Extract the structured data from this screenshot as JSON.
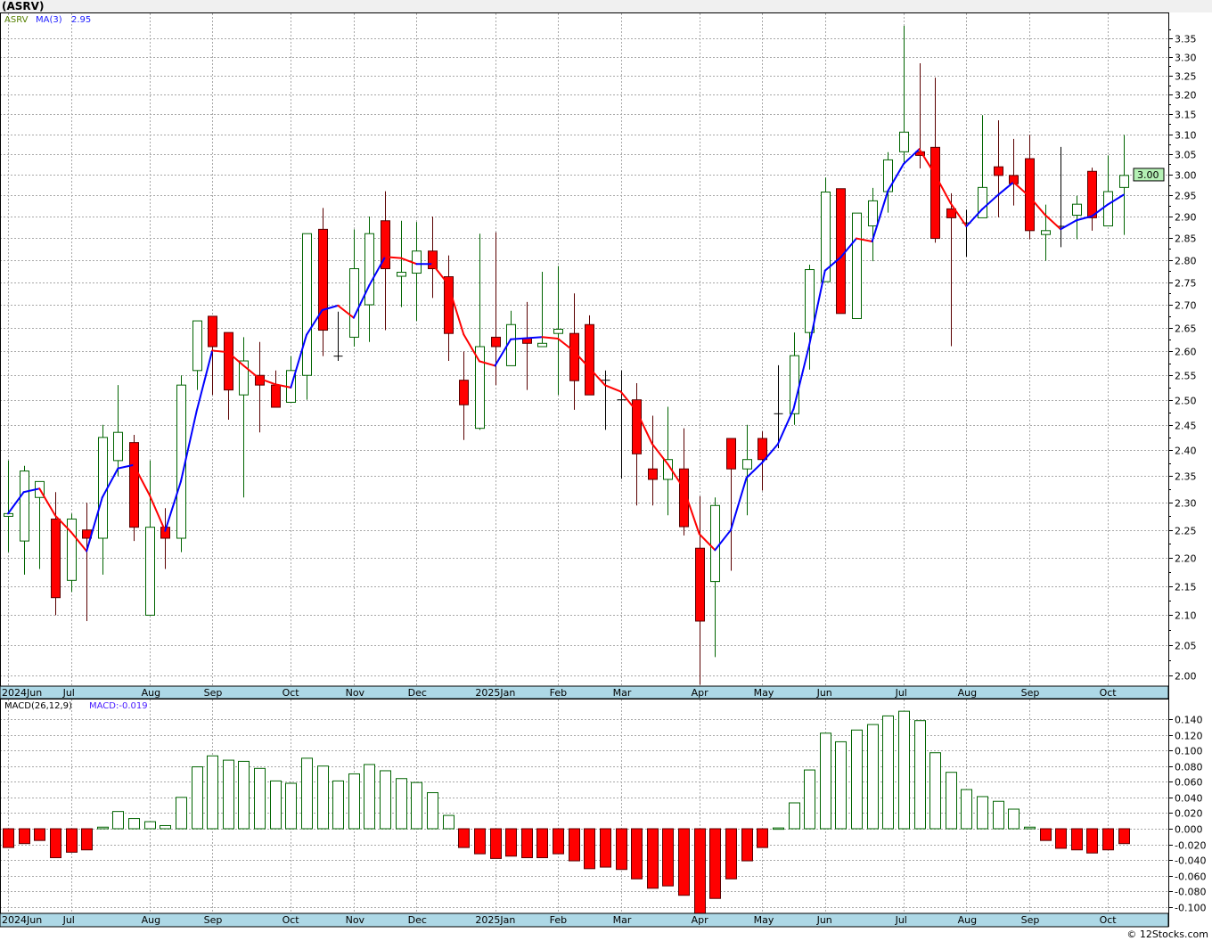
{
  "header": {
    "title": "(ASRV)",
    "footer": "© 12Stocks.com"
  },
  "colors": {
    "up": "#006400",
    "down": "#ff0000",
    "down_wick": "#5a0000",
    "ma_up": "#0000ff",
    "ma_down": "#ff0000",
    "date_strip": "#add8e6",
    "last_price_tag": "#b4f0b4"
  },
  "chart_data": [
    {
      "type": "candlestick",
      "title": "(ASRV)",
      "symbol": "ASRV",
      "scale": "log",
      "ylim": [
        2.0,
        3.35
      ],
      "yticks": [
        "2.00",
        "2.05",
        "2.10",
        "2.15",
        "2.20",
        "2.25",
        "2.30",
        "2.35",
        "2.40",
        "2.45",
        "2.50",
        "2.55",
        "2.60",
        "2.65",
        "2.70",
        "2.75",
        "2.80",
        "2.85",
        "2.90",
        "2.95",
        "3.00",
        "3.05",
        "3.10",
        "3.15",
        "3.20",
        "3.25",
        "3.30",
        "3.35"
      ],
      "grid": true,
      "legend": {
        "symbol_label": "ASRV",
        "ma_label": "MA(3)",
        "ma_value": "2.95"
      },
      "last_price": "3.00",
      "x_labels": [
        {
          "label": "2024Jun",
          "index": 0
        },
        {
          "label": "Jul",
          "index": 4
        },
        {
          "label": "Aug",
          "index": 9
        },
        {
          "label": "Sep",
          "index": 13
        },
        {
          "label": "Oct",
          "index": 18
        },
        {
          "label": "Nov",
          "index": 22
        },
        {
          "label": "Dec",
          "index": 26
        },
        {
          "label": "2025Jan",
          "index": 31
        },
        {
          "label": "Feb",
          "index": 35
        },
        {
          "label": "Mar",
          "index": 39
        },
        {
          "label": "Apr",
          "index": 44
        },
        {
          "label": "May",
          "index": 48
        },
        {
          "label": "Jun",
          "index": 52
        },
        {
          "label": "Jul",
          "index": 57
        },
        {
          "label": "Aug",
          "index": 61
        },
        {
          "label": "Sep",
          "index": 65
        },
        {
          "label": "Oct",
          "index": 70
        }
      ],
      "ohlc_fields": [
        "open",
        "high",
        "low",
        "close"
      ],
      "ohlc": [
        [
          2.275,
          2.38,
          2.21,
          2.28
        ],
        [
          2.23,
          2.37,
          2.17,
          2.36
        ],
        [
          2.31,
          2.34,
          2.18,
          2.34
        ],
        [
          2.27,
          2.32,
          2.1,
          2.13
        ],
        [
          2.16,
          2.28,
          2.14,
          2.27
        ],
        [
          2.25,
          2.3,
          2.09,
          2.235
        ],
        [
          2.235,
          2.45,
          2.17,
          2.425
        ],
        [
          2.38,
          2.53,
          2.35,
          2.435
        ],
        [
          2.415,
          2.43,
          2.23,
          2.255
        ],
        [
          2.1,
          2.38,
          2.1,
          2.255
        ],
        [
          2.255,
          2.29,
          2.18,
          2.235
        ],
        [
          2.235,
          2.55,
          2.21,
          2.53
        ],
        [
          2.56,
          2.665,
          2.52,
          2.665
        ],
        [
          2.675,
          2.675,
          2.51,
          2.61
        ],
        [
          2.64,
          2.64,
          2.46,
          2.52
        ],
        [
          2.51,
          2.63,
          2.31,
          2.58
        ],
        [
          2.55,
          2.62,
          2.435,
          2.53
        ],
        [
          2.53,
          2.56,
          2.485,
          2.485
        ],
        [
          2.495,
          2.59,
          2.495,
          2.56
        ],
        [
          2.55,
          2.86,
          2.5,
          2.86
        ],
        [
          2.87,
          2.92,
          2.59,
          2.645
        ],
        [
          2.59,
          2.685,
          2.58,
          2.59
        ],
        [
          2.63,
          2.87,
          2.61,
          2.78
        ],
        [
          2.7,
          2.9,
          2.62,
          2.86
        ],
        [
          2.89,
          2.96,
          2.645,
          2.78
        ],
        [
          2.763,
          2.89,
          2.695,
          2.772
        ],
        [
          2.77,
          2.887,
          2.665,
          2.82
        ],
        [
          2.82,
          2.9,
          2.715,
          2.78
        ],
        [
          2.762,
          2.81,
          2.58,
          2.638
        ],
        [
          2.54,
          2.6,
          2.42,
          2.49
        ],
        [
          2.443,
          2.86,
          2.44,
          2.61
        ],
        [
          2.63,
          2.863,
          2.53,
          2.61
        ],
        [
          2.57,
          2.687,
          2.57,
          2.657
        ],
        [
          2.628,
          2.706,
          2.52,
          2.617
        ],
        [
          2.61,
          2.773,
          2.61,
          2.617
        ],
        [
          2.638,
          2.786,
          2.51,
          2.647
        ],
        [
          2.638,
          2.725,
          2.48,
          2.539
        ],
        [
          2.657,
          2.677,
          2.51,
          2.51
        ],
        [
          2.54,
          2.56,
          2.44,
          2.54
        ],
        [
          2.5,
          2.56,
          2.345,
          2.5
        ],
        [
          2.5,
          2.534,
          2.295,
          2.393
        ],
        [
          2.364,
          2.468,
          2.295,
          2.344
        ],
        [
          2.344,
          2.486,
          2.277,
          2.382
        ],
        [
          2.364,
          2.443,
          2.24,
          2.256
        ],
        [
          2.217,
          2.312,
          1.985,
          2.09
        ],
        [
          2.158,
          2.31,
          2.03,
          2.295
        ],
        [
          2.423,
          2.423,
          2.177,
          2.364
        ],
        [
          2.364,
          2.45,
          2.277,
          2.382
        ],
        [
          2.423,
          2.437,
          2.323,
          2.382
        ],
        [
          2.472,
          2.571,
          2.404,
          2.472
        ],
        [
          2.472,
          2.64,
          2.45,
          2.591
        ],
        [
          2.64,
          2.789,
          2.562,
          2.778
        ],
        [
          2.751,
          2.993,
          2.751,
          2.958
        ],
        [
          2.966,
          2.966,
          2.681,
          2.681
        ],
        [
          2.67,
          2.908,
          2.67,
          2.908
        ],
        [
          2.878,
          2.968,
          2.797,
          2.937
        ],
        [
          2.959,
          3.055,
          2.909,
          3.036
        ],
        [
          3.056,
          3.384,
          3.028,
          3.105
        ],
        [
          3.056,
          3.283,
          3.015,
          3.047
        ],
        [
          3.067,
          3.245,
          2.839,
          2.849
        ],
        [
          2.918,
          2.955,
          2.611,
          2.897
        ],
        [
          2.885,
          2.916,
          2.807,
          2.885
        ],
        [
          2.897,
          3.148,
          2.897,
          2.969
        ],
        [
          3.019,
          3.135,
          2.898,
          2.998
        ],
        [
          2.998,
          3.088,
          2.926,
          2.978
        ],
        [
          3.039,
          3.098,
          2.847,
          2.867
        ],
        [
          2.858,
          2.928,
          2.798,
          2.867
        ],
        [
          2.877,
          3.068,
          2.829,
          2.877
        ],
        [
          2.903,
          2.949,
          2.847,
          2.929
        ],
        [
          3.008,
          3.017,
          2.867,
          2.897
        ],
        [
          2.878,
          3.047,
          2.878,
          2.959
        ],
        [
          2.969,
          3.098,
          2.857,
          2.998
        ]
      ],
      "ma_period": 3
    },
    {
      "type": "bar",
      "title": "MACD(26,12,9)",
      "legend": {
        "label": "MACD(26,12,9)",
        "value_label": "MACD:-0.019"
      },
      "ylim": [
        -0.11,
        0.155
      ],
      "yticks": [
        "-0.100",
        "-0.080",
        "-0.060",
        "-0.040",
        "-0.020",
        "0.000",
        "0.020",
        "0.040",
        "0.060",
        "0.080",
        "0.100",
        "0.120",
        "0.140"
      ],
      "grid": true,
      "values": [
        -0.024,
        -0.019,
        -0.015,
        -0.037,
        -0.03,
        -0.027,
        0.002,
        0.022,
        0.013,
        0.009,
        0.004,
        0.04,
        0.079,
        0.093,
        0.0875,
        0.086,
        0.077,
        0.061,
        0.058,
        0.09,
        0.08,
        0.061,
        0.07,
        0.082,
        0.074,
        0.064,
        0.059,
        0.046,
        0.017,
        -0.024,
        -0.032,
        -0.038,
        -0.035,
        -0.037,
        -0.037,
        -0.032,
        -0.041,
        -0.051,
        -0.049,
        -0.052,
        -0.064,
        -0.076,
        -0.073,
        -0.085,
        -0.109,
        -0.089,
        -0.064,
        -0.041,
        -0.024,
        0.001,
        0.033,
        0.075,
        0.122,
        0.111,
        0.126,
        0.133,
        0.144,
        0.15,
        0.138,
        0.097,
        0.072,
        0.05,
        0.041,
        0.035,
        0.025,
        0.002,
        -0.015,
        -0.025,
        -0.027,
        -0.031,
        -0.027,
        -0.019
      ]
    }
  ]
}
